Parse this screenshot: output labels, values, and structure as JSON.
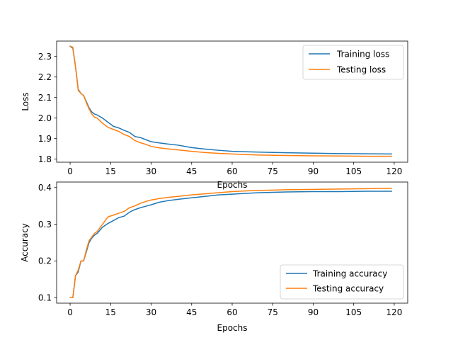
{
  "chart_data": [
    {
      "type": "line",
      "xlabel": "Epochs",
      "ylabel": "Loss",
      "xlim": [
        -5,
        125
      ],
      "ylim": [
        1.785,
        2.375
      ],
      "xticks": [
        0,
        15,
        30,
        45,
        60,
        75,
        90,
        105,
        120
      ],
      "xtick_labels": [
        "0",
        "15",
        "30",
        "45",
        "60",
        "75",
        "90",
        "105",
        "120"
      ],
      "yticks": [
        1.8,
        1.9,
        2.0,
        2.1,
        2.2,
        2.3
      ],
      "ytick_labels": [
        "1.8",
        "1.9",
        "2.0",
        "2.1",
        "2.2",
        "2.3"
      ],
      "grid": false,
      "legend": "upper-right",
      "x": [
        0,
        1,
        2,
        3,
        4,
        5,
        6,
        7,
        8,
        9,
        10,
        12,
        14,
        16,
        18,
        20,
        22,
        24,
        26,
        28,
        30,
        33,
        36,
        40,
        45,
        50,
        55,
        60,
        65,
        70,
        80,
        90,
        100,
        110,
        119
      ],
      "series": [
        {
          "name": "Training loss",
          "color": "#1f77b4",
          "values": [
            2.35,
            2.34,
            2.25,
            2.14,
            2.12,
            2.11,
            2.08,
            2.05,
            2.03,
            2.02,
            2.015,
            2.0,
            1.98,
            1.96,
            1.952,
            1.94,
            1.93,
            1.91,
            1.905,
            1.895,
            1.885,
            1.879,
            1.874,
            1.868,
            1.856,
            1.849,
            1.843,
            1.838,
            1.836,
            1.834,
            1.831,
            1.829,
            1.827,
            1.826,
            1.825
          ]
        },
        {
          "name": "Testing loss",
          "color": "#ff7f0e",
          "values": [
            2.35,
            2.345,
            2.25,
            2.135,
            2.12,
            2.11,
            2.075,
            2.045,
            2.02,
            2.005,
            2.0,
            1.975,
            1.955,
            1.945,
            1.935,
            1.92,
            1.91,
            1.89,
            1.88,
            1.872,
            1.862,
            1.855,
            1.85,
            1.845,
            1.838,
            1.832,
            1.828,
            1.825,
            1.822,
            1.82,
            1.818,
            1.816,
            1.815,
            1.814,
            1.814
          ]
        }
      ]
    },
    {
      "type": "line",
      "xlabel": "Epochs",
      "ylabel": "Accuracy",
      "xlim": [
        -5,
        125
      ],
      "ylim": [
        0.085,
        0.415
      ],
      "xticks": [
        0,
        15,
        30,
        45,
        60,
        75,
        90,
        105,
        120
      ],
      "xtick_labels": [
        "0",
        "15",
        "30",
        "45",
        "60",
        "75",
        "90",
        "105",
        "120"
      ],
      "yticks": [
        0.1,
        0.2,
        0.3,
        0.4
      ],
      "ytick_labels": [
        "0.1",
        "0.2",
        "0.3",
        "0.4"
      ],
      "grid": false,
      "legend": "lower-right",
      "x": [
        0,
        1,
        2,
        3,
        4,
        5,
        6,
        7,
        8,
        9,
        10,
        12,
        14,
        16,
        18,
        20,
        22,
        24,
        26,
        28,
        30,
        33,
        36,
        40,
        45,
        50,
        55,
        60,
        65,
        70,
        80,
        90,
        100,
        110,
        119
      ],
      "series": [
        {
          "name": "Training accuracy",
          "color": "#1f77b4",
          "values": [
            0.1,
            0.1,
            0.16,
            0.17,
            0.2,
            0.2,
            0.225,
            0.25,
            0.262,
            0.27,
            0.275,
            0.292,
            0.302,
            0.31,
            0.318,
            0.322,
            0.333,
            0.34,
            0.345,
            0.349,
            0.353,
            0.36,
            0.364,
            0.368,
            0.372,
            0.376,
            0.38,
            0.382,
            0.384,
            0.386,
            0.388,
            0.389,
            0.389,
            0.39,
            0.39
          ]
        },
        {
          "name": "Testing accuracy",
          "color": "#ff7f0e",
          "values": [
            0.1,
            0.1,
            0.16,
            0.175,
            0.2,
            0.2,
            0.23,
            0.255,
            0.265,
            0.275,
            0.28,
            0.3,
            0.32,
            0.325,
            0.33,
            0.335,
            0.345,
            0.35,
            0.357,
            0.362,
            0.366,
            0.37,
            0.373,
            0.376,
            0.38,
            0.383,
            0.386,
            0.389,
            0.391,
            0.392,
            0.394,
            0.395,
            0.396,
            0.397,
            0.398
          ]
        }
      ]
    }
  ]
}
